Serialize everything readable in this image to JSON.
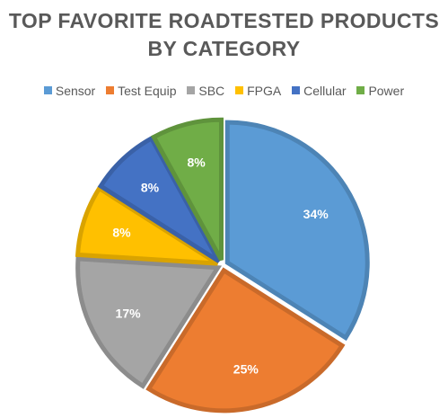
{
  "chart_data": {
    "type": "pie",
    "title_lines": [
      "TOP FAVORITE ROADTESTED PRODUCTS",
      "BY CATEGORY"
    ],
    "categories": [
      "Sensor",
      "Test Equip",
      "SBC",
      "FPGA",
      "Cellular",
      "Power"
    ],
    "values": [
      34,
      25,
      17,
      8,
      8,
      8
    ],
    "labels": [
      "34%",
      "25%",
      "17%",
      "8%",
      "8%",
      "8%"
    ],
    "colors": [
      "#5B9BD5",
      "#ED7D31",
      "#A5A5A5",
      "#FFC000",
      "#4472C4",
      "#70AD47"
    ],
    "legend_position": "top",
    "exploded": true
  }
}
